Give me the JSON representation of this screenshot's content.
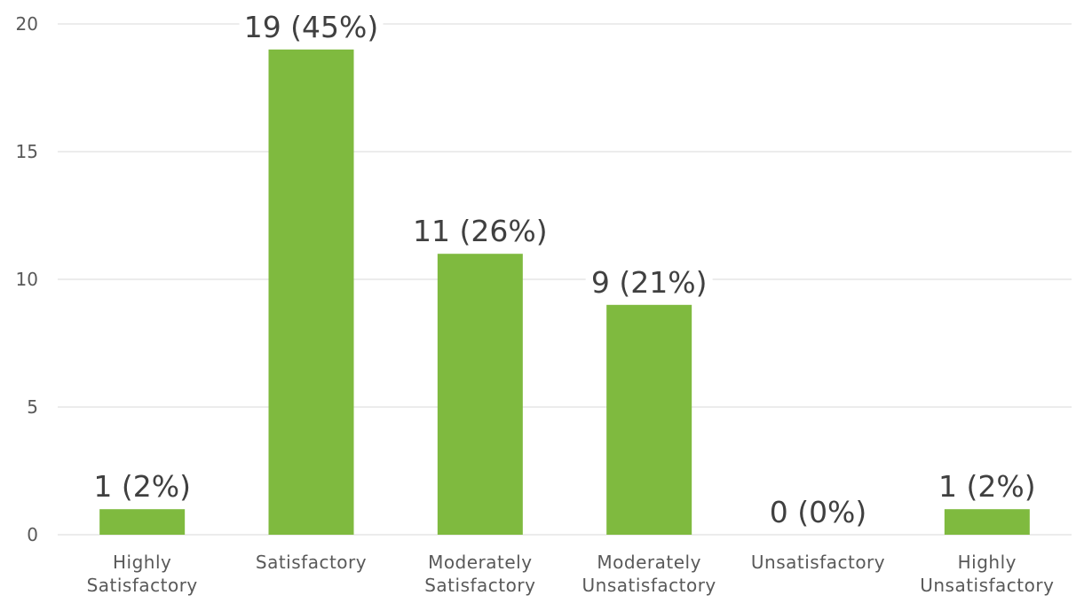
{
  "chart_data": {
    "type": "bar",
    "categories": [
      [
        "Highly",
        "Satisfactory"
      ],
      [
        "Satisfactory"
      ],
      [
        "Moderately",
        "Satisfactory"
      ],
      [
        "Moderately",
        "Unsatisfactory"
      ],
      [
        "Unsatisfactory"
      ],
      [
        "Highly",
        "Unsatisfactory"
      ]
    ],
    "values": [
      1,
      19,
      11,
      9,
      0,
      1
    ],
    "data_labels": [
      "1 (2%)",
      "19 (45%)",
      "11 (26%)",
      "9 (21%)",
      "0 (0%)",
      "1 (2%)"
    ],
    "ylim": [
      0,
      20
    ],
    "yticks": [
      0,
      5,
      10,
      15,
      20
    ],
    "grid": true,
    "legend": "none",
    "bar_color": "#7fba3f"
  }
}
